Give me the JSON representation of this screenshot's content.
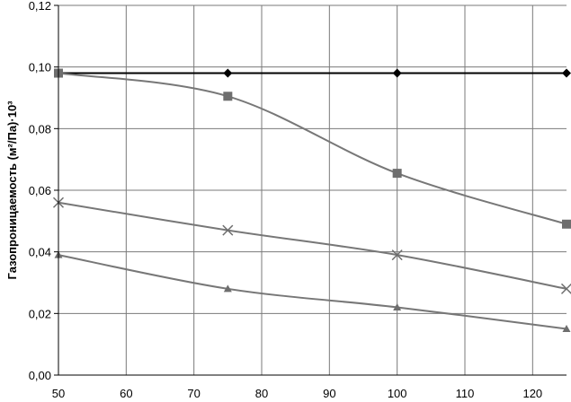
{
  "chart_data": {
    "type": "line",
    "title": "",
    "xlabel": "",
    "ylabel": "Газопроницаемость (м²/Па)·10³",
    "xlim": [
      50,
      125
    ],
    "ylim": [
      0,
      0.12
    ],
    "x_ticks": [
      "50",
      "60",
      "70",
      "80",
      "90",
      "100",
      "110",
      "120"
    ],
    "y_ticks": [
      "0,00",
      "0,02",
      "0,04",
      "0,06",
      "0,08",
      "0,10",
      "0,12"
    ],
    "grid": true,
    "legend": "none",
    "series": [
      {
        "marker": "diamond",
        "color": "#000000",
        "smooth": false,
        "x": [
          50,
          75,
          100,
          125
        ],
        "y": [
          0.098,
          0.098,
          0.098,
          0.098
        ]
      },
      {
        "marker": "square",
        "color": "#777777",
        "smooth": true,
        "x": [
          50,
          75,
          100,
          125
        ],
        "y": [
          0.098,
          0.0905,
          0.0655,
          0.049
        ]
      },
      {
        "marker": "star",
        "color": "#777777",
        "smooth": true,
        "x": [
          50,
          75,
          100,
          125
        ],
        "y": [
          0.056,
          0.047,
          0.039,
          0.028
        ]
      },
      {
        "marker": "triangle",
        "color": "#777777",
        "smooth": true,
        "x": [
          50,
          75,
          100,
          125
        ],
        "y": [
          0.039,
          0.028,
          0.022,
          0.015
        ]
      }
    ]
  }
}
